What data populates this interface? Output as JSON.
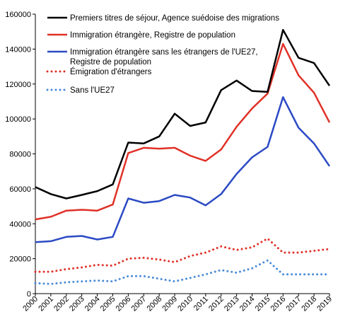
{
  "chart_data": {
    "type": "line",
    "title": "",
    "xlabel": "",
    "ylabel": "",
    "x": [
      "2000",
      "2001",
      "2002",
      "2003",
      "2004",
      "2005",
      "2006",
      "2007",
      "2008",
      "2009",
      "2010",
      "2011",
      "2012",
      "2013",
      "2014",
      "2015",
      "2016",
      "2017",
      "2018",
      "2019"
    ],
    "ylim": [
      0,
      160000
    ],
    "yticks": [
      0,
      20000,
      40000,
      60000,
      80000,
      100000,
      120000,
      140000,
      160000
    ],
    "ytick_labels": [
      "0",
      "20000",
      "40000",
      "60000",
      "80000",
      "100000",
      "120000",
      "140000",
      "160000"
    ],
    "grid": false,
    "legend_position": "top-left",
    "series": [
      {
        "name": "Premiers titres de séjour, Agence suédoise des migrations",
        "color": "#000000",
        "style": "solid",
        "values": [
          61000,
          57000,
          54500,
          56500,
          58700,
          62500,
          86500,
          86000,
          90000,
          103000,
          96000,
          98000,
          116500,
          122000,
          116000,
          115500,
          151000,
          135000,
          132000,
          119000
        ]
      },
      {
        "name": "Immigration étrangère, Registre de population",
        "color": "#e03127",
        "style": "solid",
        "values": [
          42500,
          44000,
          47500,
          48000,
          47500,
          51000,
          80500,
          83500,
          83000,
          83500,
          79000,
          76000,
          82500,
          95500,
          106000,
          114500,
          143000,
          125000,
          115000,
          98000
        ]
      },
      {
        "name": "Immigration étrangère sans les étrangers de l'UE27, Registre de population",
        "name_lines": [
          "Immigration étrangère sans les étrangers de l'UE27,",
          "Registre de population"
        ],
        "color": "#2b4ac4",
        "style": "solid",
        "values": [
          29500,
          30000,
          32500,
          33000,
          31000,
          32500,
          54500,
          52000,
          53000,
          56500,
          55000,
          50500,
          57000,
          68500,
          78000,
          84000,
          112500,
          95000,
          86000,
          73000
        ]
      },
      {
        "name": "Émigration d'étrangers",
        "color": "#e03127",
        "style": "dotted",
        "values": [
          12500,
          12500,
          14000,
          15000,
          16500,
          16000,
          20000,
          20500,
          19500,
          18000,
          21500,
          23500,
          27000,
          25000,
          26500,
          31500,
          23500,
          23500,
          24500,
          25500
        ]
      },
      {
        "name": "Sans  l'UE27",
        "color": "#4a8bd6",
        "style": "dotted",
        "values": [
          6000,
          5500,
          6500,
          7000,
          7500,
          7000,
          10000,
          10000,
          8500,
          7000,
          9000,
          11000,
          13500,
          12000,
          14500,
          19000,
          11000,
          11000,
          11000,
          11000
        ]
      }
    ]
  }
}
